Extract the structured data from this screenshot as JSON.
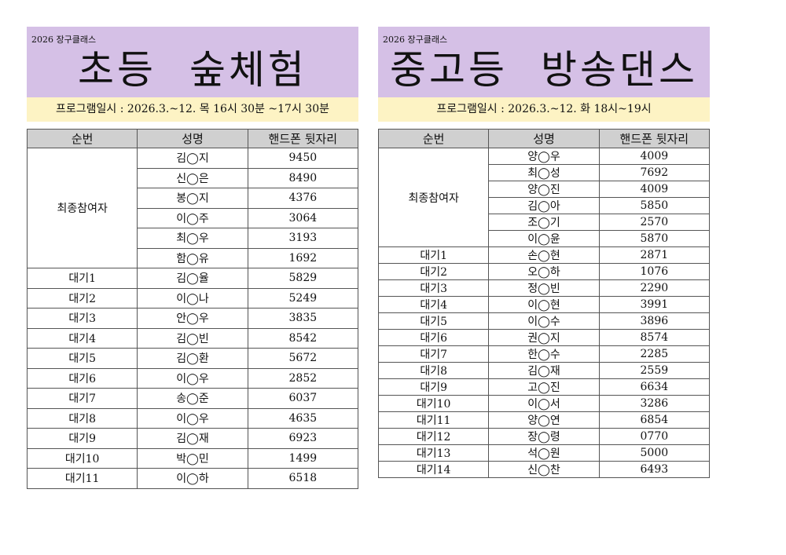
{
  "panels": [
    {
      "year_label": "2026 장구클래스",
      "title": "초등 숲체험",
      "schedule": "프로그램일시 : 2026.3.~12. 목 16시 30분 ~17시 30분",
      "headers": [
        "순번",
        "성명",
        "핸드폰 뒷자리"
      ],
      "final_group": "최종참여자",
      "final_rows": [
        [
          "김◯지",
          "9450"
        ],
        [
          "신◯은",
          "8490"
        ],
        [
          "봉◯지",
          "4376"
        ],
        [
          "이◯주",
          "3064"
        ],
        [
          "최◯우",
          "3193"
        ],
        [
          "함◯유",
          "1692"
        ]
      ],
      "waitlist_rows": [
        [
          "대기1",
          "김◯율",
          "5829"
        ],
        [
          "대기2",
          "이◯나",
          "5249"
        ],
        [
          "대기3",
          "안◯우",
          "3835"
        ],
        [
          "대기4",
          "김◯빈",
          "8542"
        ],
        [
          "대기5",
          "김◯환",
          "5672"
        ],
        [
          "대기6",
          "이◯우",
          "2852"
        ],
        [
          "대기7",
          "송◯준",
          "6037"
        ],
        [
          "대기8",
          "이◯우",
          "4635"
        ],
        [
          "대기9",
          "김◯재",
          "6923"
        ],
        [
          "대기10",
          "박◯민",
          "1499"
        ],
        [
          "대기11",
          "이◯하",
          "6518"
        ]
      ]
    },
    {
      "year_label": "2026 장구클래스",
      "title": "중고등 방송댄스",
      "schedule": "프로그램일시 : 2026.3.~12. 화 18시~19시",
      "headers": [
        "순번",
        "성명",
        "핸드폰 뒷자리"
      ],
      "final_group": "최종참여자",
      "final_rows": [
        [
          "양◯우",
          "4009"
        ],
        [
          "최◯성",
          "7692"
        ],
        [
          "양◯진",
          "4009"
        ],
        [
          "김◯아",
          "5850"
        ],
        [
          "조◯기",
          "2570"
        ],
        [
          "이◯윤",
          "5870"
        ]
      ],
      "waitlist_rows": [
        [
          "대기1",
          "손◯현",
          "2871"
        ],
        [
          "대기2",
          "오◯하",
          "1076"
        ],
        [
          "대기3",
          "정◯빈",
          "2290"
        ],
        [
          "대기4",
          "이◯현",
          "3991"
        ],
        [
          "대기5",
          "이◯수",
          "3896"
        ],
        [
          "대기6",
          "권◯지",
          "8574"
        ],
        [
          "대기7",
          "한◯수",
          "2285"
        ],
        [
          "대기8",
          "김◯재",
          "2559"
        ],
        [
          "대기9",
          "고◯진",
          "6634"
        ],
        [
          "대기10",
          "이◯서",
          "3286"
        ],
        [
          "대기11",
          "양◯연",
          "6854"
        ],
        [
          "대기12",
          "장◯령",
          "0770"
        ],
        [
          "대기13",
          "석◯원",
          "5000"
        ],
        [
          "대기14",
          "신◯찬",
          "6493"
        ]
      ]
    }
  ]
}
